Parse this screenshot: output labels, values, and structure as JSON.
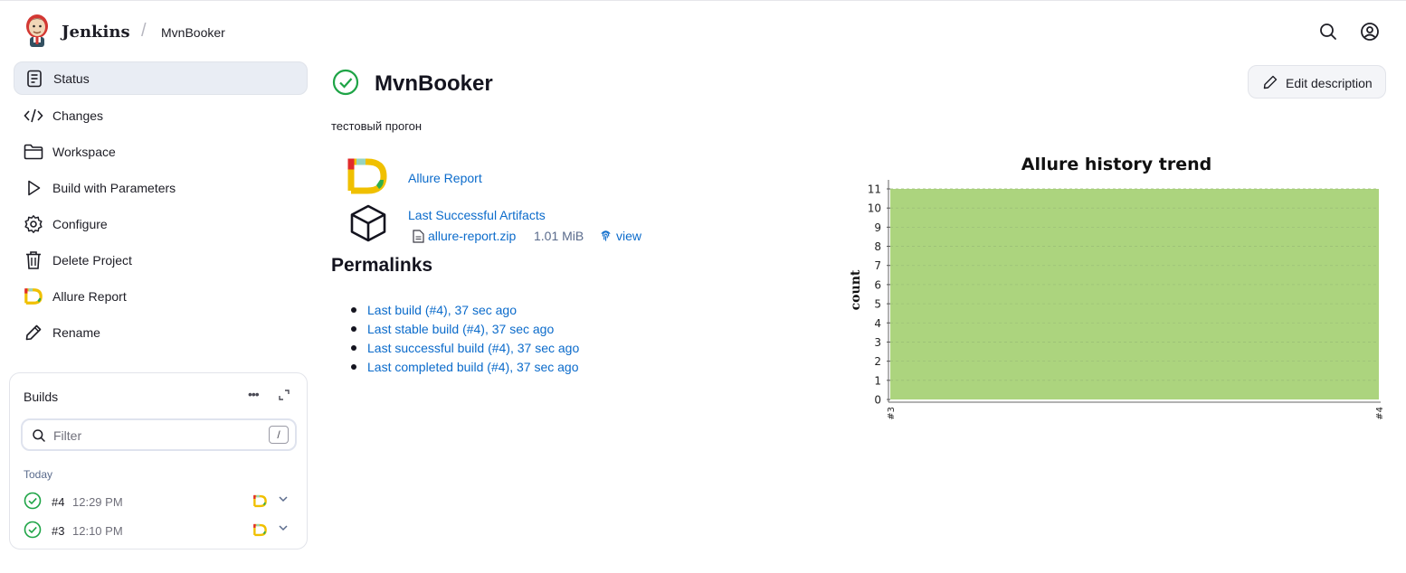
{
  "header": {
    "brand": "Jenkins",
    "breadcrumb": "MvnBooker",
    "icons": [
      "search-icon",
      "user-icon"
    ]
  },
  "sidebar": {
    "items": [
      {
        "label": "Status",
        "icon": "status-icon"
      },
      {
        "label": "Changes",
        "icon": "code-icon"
      },
      {
        "label": "Workspace",
        "icon": "folder-icon"
      },
      {
        "label": "Build with Parameters",
        "icon": "play-icon"
      },
      {
        "label": "Configure",
        "icon": "gear-icon"
      },
      {
        "label": "Delete Project",
        "icon": "trash-icon"
      },
      {
        "label": "Allure Report",
        "icon": "allure-icon"
      },
      {
        "label": "Rename",
        "icon": "pencil-icon"
      }
    ]
  },
  "builds": {
    "title": "Builds",
    "filter_placeholder": "Filter",
    "filter_shortcut": "/",
    "group": "Today",
    "rows": [
      {
        "number": "#4",
        "time": "12:29 PM"
      },
      {
        "number": "#3",
        "time": "12:10 PM"
      }
    ]
  },
  "main": {
    "title": "MvnBooker",
    "edit_label": "Edit description",
    "description": "тестовый прогон",
    "allure_link": "Allure Report",
    "artifacts_link": "Last Successful Artifacts",
    "artifact_file": "allure-report.zip",
    "artifact_size": "1.01 MiB",
    "artifact_view": "view",
    "permalinks_title": "Permalinks",
    "permalinks": [
      "Last build (#4), 37 sec ago",
      "Last stable build (#4), 37 sec ago",
      "Last successful build (#4), 37 sec ago",
      "Last completed build (#4), 37 sec ago"
    ]
  },
  "colors": {
    "success": "#1ea446",
    "link": "#0b6bcb",
    "chart_fill": "#acd47e"
  },
  "chart_data": {
    "type": "area",
    "title": "Allure history trend",
    "ylabel": "count",
    "xlabel": "",
    "categories": [
      "#3",
      "#4"
    ],
    "series": [
      {
        "values": [
          11,
          11
        ]
      }
    ],
    "ylim": [
      0,
      11
    ],
    "yticks": [
      0,
      1,
      2,
      3,
      4,
      5,
      6,
      7,
      8,
      9,
      10,
      11
    ],
    "grid": true,
    "legend": "none"
  }
}
